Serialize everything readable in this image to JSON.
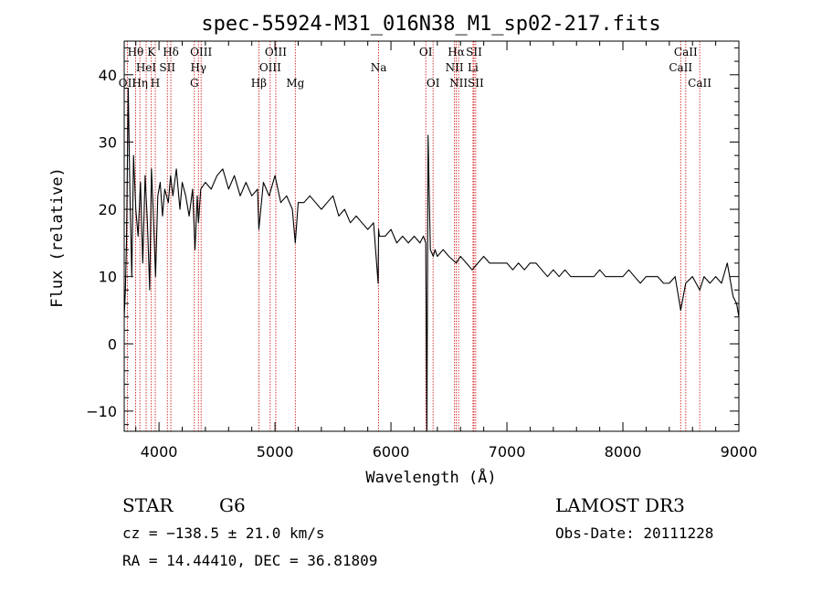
{
  "chart_data": {
    "type": "line",
    "title": "spec-55924-M31_016N38_M1_sp02-217.fits",
    "xlabel": "Wavelength (Å)",
    "ylabel": "Flux (relative)",
    "xlim": [
      3700,
      9000
    ],
    "ylim": [
      -13,
      45
    ],
    "x_ticks": [
      4000,
      5000,
      6000,
      7000,
      8000,
      9000
    ],
    "y_ticks": [
      -10,
      0,
      10,
      20,
      30,
      40
    ],
    "series": [
      {
        "name": "flux",
        "x": [
          3700,
          3710,
          3720,
          3735,
          3750,
          3765,
          3780,
          3800,
          3820,
          3840,
          3860,
          3880,
          3900,
          3920,
          3935,
          3950,
          3970,
          3990,
          4010,
          4030,
          4050,
          4080,
          4100,
          4120,
          4150,
          4180,
          4200,
          4230,
          4260,
          4290,
          4310,
          4330,
          4340,
          4360,
          4400,
          4450,
          4500,
          4550,
          4600,
          4650,
          4700,
          4750,
          4800,
          4850,
          4861,
          4900,
          4950,
          5000,
          5050,
          5100,
          5150,
          5175,
          5200,
          5250,
          5300,
          5350,
          5400,
          5450,
          5500,
          5550,
          5600,
          5650,
          5700,
          5750,
          5800,
          5850,
          5889,
          5893,
          5900,
          5950,
          6000,
          6050,
          6100,
          6150,
          6200,
          6250,
          6280,
          6300,
          6310,
          6320,
          6340,
          6365,
          6380,
          6400,
          6450,
          6500,
          6563,
          6600,
          6650,
          6700,
          6750,
          6800,
          6850,
          6900,
          6950,
          7000,
          7050,
          7100,
          7150,
          7200,
          7250,
          7300,
          7350,
          7400,
          7450,
          7500,
          7550,
          7600,
          7650,
          7700,
          7750,
          7800,
          7850,
          7900,
          7950,
          8000,
          8050,
          8100,
          8150,
          8200,
          8250,
          8300,
          8350,
          8400,
          8450,
          8498,
          8542,
          8600,
          8662,
          8700,
          8750,
          8800,
          8850,
          8900,
          8950,
          8980,
          9000
        ],
        "y": [
          4,
          8,
          15,
          38,
          22,
          10,
          28,
          20,
          16,
          24,
          12,
          25,
          18,
          8,
          26,
          20,
          10,
          22,
          24,
          19,
          23,
          21,
          25,
          22,
          26,
          20,
          24,
          22,
          19,
          23,
          14,
          22,
          18,
          23,
          24,
          23,
          25,
          26,
          23,
          25,
          22,
          24,
          22,
          23,
          17,
          24,
          22,
          25,
          21,
          22,
          20,
          15,
          21,
          21,
          22,
          21,
          20,
          21,
          22,
          19,
          20,
          18,
          19,
          18,
          17,
          18,
          9,
          17,
          16,
          16,
          17,
          15,
          16,
          15,
          16,
          15,
          16,
          15,
          -13,
          31,
          14,
          13,
          14,
          13,
          14,
          13,
          12,
          13,
          12,
          11,
          12,
          13,
          12,
          12,
          12,
          12,
          11,
          12,
          11,
          12,
          12,
          11,
          10,
          11,
          10,
          11,
          10,
          10,
          10,
          10,
          10,
          11,
          10,
          10,
          10,
          10,
          11,
          10,
          9,
          10,
          10,
          10,
          9,
          9,
          10,
          5,
          9,
          10,
          8,
          10,
          9,
          10,
          9,
          12,
          7,
          6,
          4
        ]
      }
    ],
    "spectral_lines": [
      {
        "label": "OII",
        "x": 3727,
        "row": 3
      },
      {
        "label": "Hθ",
        "x": 3798,
        "row": 1
      },
      {
        "label": "Hη",
        "x": 3835,
        "row": 3
      },
      {
        "label": "HeI",
        "x": 3889,
        "row": 2
      },
      {
        "label": "K",
        "x": 3934,
        "row": 1
      },
      {
        "label": "H",
        "x": 3968,
        "row": 3
      },
      {
        "label": "SII",
        "x": 4072,
        "row": 2
      },
      {
        "label": "Hδ",
        "x": 4102,
        "row": 1
      },
      {
        "label": "G",
        "x": 4305,
        "row": 3
      },
      {
        "label": "Hγ",
        "x": 4340,
        "row": 2
      },
      {
        "label": "OIII",
        "x": 4363,
        "row": 1
      },
      {
        "label": "Hβ",
        "x": 4861,
        "row": 3
      },
      {
        "label": "OIII",
        "x": 4959,
        "row": 2
      },
      {
        "label": "OIII",
        "x": 5007,
        "row": 1
      },
      {
        "label": "Mg",
        "x": 5175,
        "row": 3
      },
      {
        "label": "Na",
        "x": 5894,
        "row": 2
      },
      {
        "label": "OI",
        "x": 6300,
        "row": 1
      },
      {
        "label": "OI",
        "x": 6363,
        "row": 3
      },
      {
        "label": "NII",
        "x": 6548,
        "row": 2
      },
      {
        "label": "Hα",
        "x": 6563,
        "row": 1
      },
      {
        "label": "NII",
        "x": 6583,
        "row": 3
      },
      {
        "label": "Li",
        "x": 6708,
        "row": 2
      },
      {
        "label": "SII",
        "x": 6716,
        "row": 1
      },
      {
        "label": "SII",
        "x": 6731,
        "row": 3
      },
      {
        "label": "CaII",
        "x": 8498,
        "row": 2
      },
      {
        "label": "CaII",
        "x": 8542,
        "row": 1
      },
      {
        "label": "CaII",
        "x": 8662,
        "row": 3
      }
    ]
  },
  "info": {
    "object_class": "STAR",
    "subclass": "G6",
    "survey": "LAMOST DR3",
    "redshift_line": "cz = −138.5 ± 21.0 km/s",
    "obs_date": "Obs-Date: 20111228",
    "coords": "RA =  14.44410, DEC =  36.81809"
  },
  "colors": {
    "line_marker": "#cc0000",
    "spectrum": "#000000",
    "axes": "#000000"
  }
}
